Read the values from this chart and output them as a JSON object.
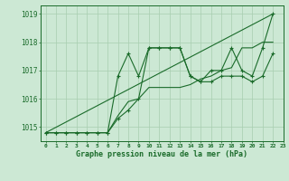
{
  "title": "Graphe pression niveau de la mer (hPa)",
  "bg_color": "#cce8d4",
  "grid_color": "#a8cdb0",
  "line_color": "#1a6b2a",
  "xlim": [
    -0.5,
    23
  ],
  "ylim": [
    1014.5,
    1019.3
  ],
  "yticks": [
    1015,
    1016,
    1017,
    1018,
    1019
  ],
  "xticks": [
    0,
    1,
    2,
    3,
    4,
    5,
    6,
    7,
    8,
    9,
    10,
    11,
    12,
    13,
    14,
    15,
    16,
    17,
    18,
    19,
    20,
    21,
    22,
    23
  ],
  "series1": [
    1014.8,
    1014.8,
    1014.8,
    1014.8,
    1014.8,
    1014.8,
    1014.8,
    1016.8,
    1017.6,
    1016.8,
    1017.8,
    1017.8,
    1017.8,
    1017.8,
    1016.8,
    1016.6,
    1017.0,
    1017.0,
    1017.8,
    1017.0,
    1016.8,
    1017.8,
    1019.0
  ],
  "series2": [
    1014.8,
    1014.8,
    1014.8,
    1014.8,
    1014.8,
    1014.8,
    1014.8,
    1015.3,
    1015.6,
    1016.0,
    1017.8,
    1017.8,
    1017.8,
    1017.8,
    1016.8,
    1016.6,
    1016.6,
    1016.8,
    1016.8,
    1016.8,
    1016.6,
    1016.8,
    1017.6
  ],
  "series3": [
    1014.8,
    1014.8,
    1014.8,
    1014.8,
    1014.8,
    1014.8,
    1014.8,
    1015.4,
    1015.9,
    1016.0,
    1016.4,
    1016.4,
    1016.4,
    1016.4,
    1016.5,
    1016.7,
    1016.8,
    1017.0,
    1017.1,
    1017.8,
    1017.8,
    1018.0,
    1018.0
  ],
  "series4": [
    1014.8,
    1019.0
  ]
}
